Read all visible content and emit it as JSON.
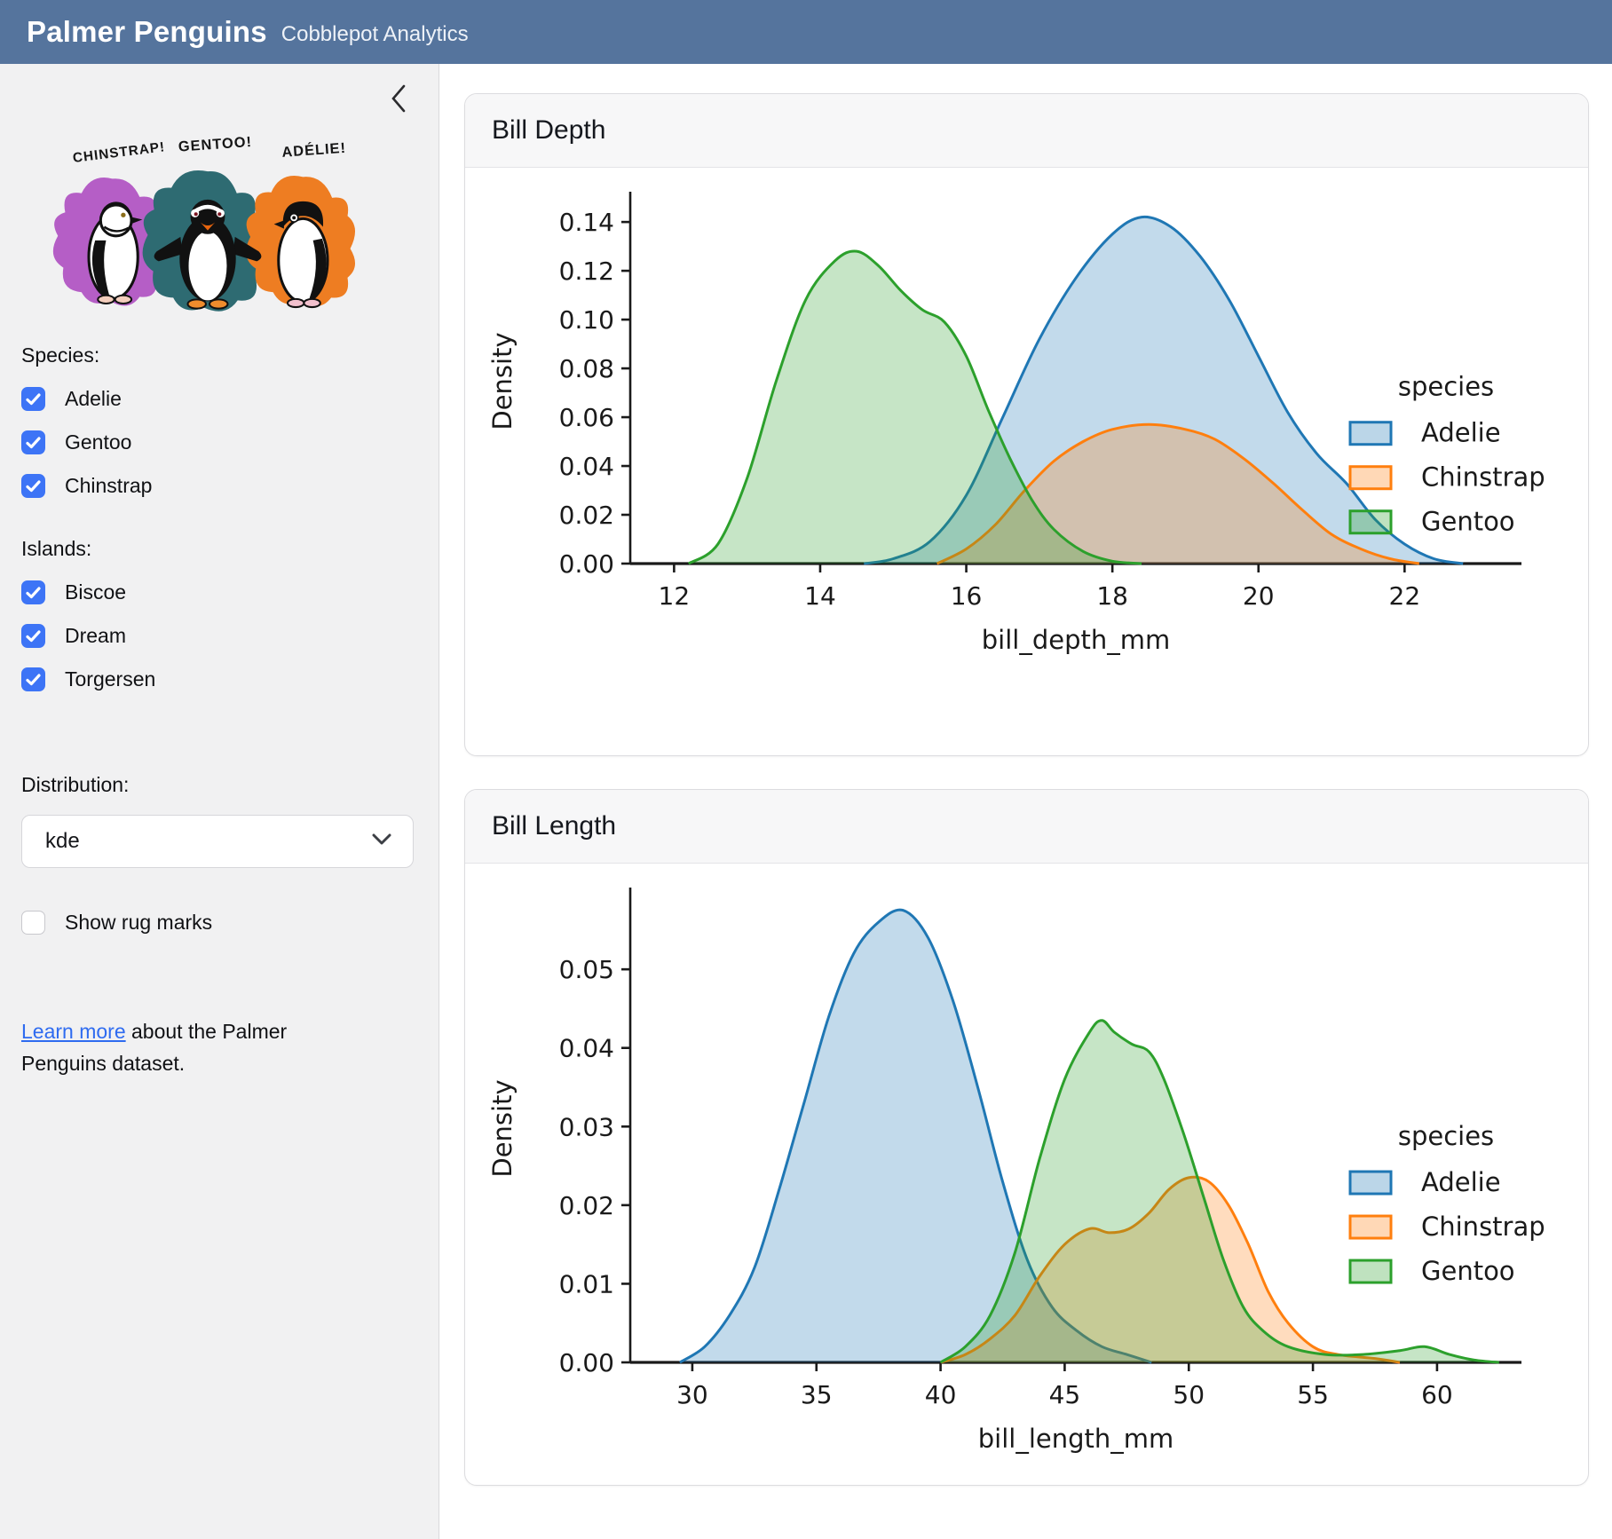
{
  "theme": {
    "header_bg": "#55749d",
    "accent": "#3d74f6",
    "link": "#2e6bf0",
    "sidebar_bg": "#f1f1f2",
    "axis_color": "#1a1a1a"
  },
  "header": {
    "title": "Palmer Penguins",
    "subtitle": "Cobblepot Analytics"
  },
  "sidebar": {
    "banner": {
      "labels": [
        "CHINSTRAP!",
        "GENTOO!",
        "ADÉLIE!"
      ],
      "colors": {
        "chinstrap": "#b55ec6",
        "gentoo": "#2e6b72",
        "adelie": "#ee7d22"
      }
    },
    "species_label": "Species:",
    "species": [
      {
        "label": "Adelie",
        "checked": true
      },
      {
        "label": "Gentoo",
        "checked": true
      },
      {
        "label": "Chinstrap",
        "checked": true
      }
    ],
    "islands_label": "Islands:",
    "islands": [
      {
        "label": "Biscoe",
        "checked": true
      },
      {
        "label": "Dream",
        "checked": true
      },
      {
        "label": "Torgersen",
        "checked": true
      }
    ],
    "distribution_label": "Distribution:",
    "distribution_value": "kde",
    "rug": {
      "label": "Show rug marks",
      "checked": false
    },
    "about": {
      "link_text": "Learn more",
      "rest_text": " about the Palmer Penguins dataset."
    }
  },
  "chart_data": [
    {
      "card_title": "Bill Depth",
      "type": "area",
      "kind": "kde",
      "xlabel": "bill_depth_mm",
      "ylabel": "Density",
      "xlim": [
        11.4,
        23.6
      ],
      "ylim": [
        0,
        0.1495
      ],
      "xticks": [
        12,
        14,
        16,
        18,
        20,
        22
      ],
      "yticks": [
        0.0,
        0.02,
        0.04,
        0.06,
        0.08,
        0.1,
        0.12,
        0.14
      ],
      "legend": {
        "title": "species",
        "position": "center right"
      },
      "series": [
        {
          "name": "Adelie",
          "color": "#1f77b4",
          "points": [
            [
              14.6,
              0
            ],
            [
              15.0,
              0.002
            ],
            [
              15.5,
              0.009
            ],
            [
              16.0,
              0.028
            ],
            [
              16.5,
              0.06
            ],
            [
              17.0,
              0.092
            ],
            [
              17.5,
              0.117
            ],
            [
              18.0,
              0.135
            ],
            [
              18.4,
              0.142
            ],
            [
              18.8,
              0.138
            ],
            [
              19.2,
              0.126
            ],
            [
              19.6,
              0.108
            ],
            [
              20.0,
              0.085
            ],
            [
              20.4,
              0.062
            ],
            [
              20.8,
              0.045
            ],
            [
              21.2,
              0.033
            ],
            [
              21.6,
              0.018
            ],
            [
              22.0,
              0.008
            ],
            [
              22.4,
              0.002
            ],
            [
              22.8,
              0
            ]
          ]
        },
        {
          "name": "Chinstrap",
          "color": "#ff7f0e",
          "points": [
            [
              15.6,
              0
            ],
            [
              16.0,
              0.006
            ],
            [
              16.4,
              0.016
            ],
            [
              16.8,
              0.03
            ],
            [
              17.2,
              0.042
            ],
            [
              17.6,
              0.05
            ],
            [
              18.0,
              0.055
            ],
            [
              18.5,
              0.057
            ],
            [
              19.0,
              0.055
            ],
            [
              19.4,
              0.051
            ],
            [
              19.8,
              0.043
            ],
            [
              20.2,
              0.033
            ],
            [
              20.6,
              0.022
            ],
            [
              21.0,
              0.012
            ],
            [
              21.4,
              0.006
            ],
            [
              21.8,
              0.002
            ],
            [
              22.2,
              0
            ]
          ]
        },
        {
          "name": "Gentoo",
          "color": "#2ca02c",
          "points": [
            [
              12.2,
              0
            ],
            [
              12.6,
              0.008
            ],
            [
              13.0,
              0.035
            ],
            [
              13.4,
              0.075
            ],
            [
              13.8,
              0.108
            ],
            [
              14.2,
              0.124
            ],
            [
              14.5,
              0.128
            ],
            [
              14.8,
              0.122
            ],
            [
              15.1,
              0.112
            ],
            [
              15.4,
              0.104
            ],
            [
              15.7,
              0.099
            ],
            [
              16.0,
              0.085
            ],
            [
              16.3,
              0.063
            ],
            [
              16.6,
              0.043
            ],
            [
              16.9,
              0.026
            ],
            [
              17.2,
              0.014
            ],
            [
              17.6,
              0.005
            ],
            [
              18.0,
              0.001
            ],
            [
              18.4,
              0
            ]
          ]
        }
      ]
    },
    {
      "card_title": "Bill Length",
      "type": "area",
      "kind": "kde",
      "xlabel": "bill_length_mm",
      "ylabel": "Density",
      "xlim": [
        27.5,
        63.4
      ],
      "ylim": [
        0,
        0.0595
      ],
      "xticks": [
        30,
        35,
        40,
        45,
        50,
        55,
        60
      ],
      "yticks": [
        0.0,
        0.01,
        0.02,
        0.03,
        0.04,
        0.05
      ],
      "legend": {
        "title": "species",
        "position": "center right"
      },
      "series": [
        {
          "name": "Adelie",
          "color": "#1f77b4",
          "points": [
            [
              29.5,
              0
            ],
            [
              30.5,
              0.002
            ],
            [
              31.5,
              0.006
            ],
            [
              32.5,
              0.012
            ],
            [
              33.5,
              0.022
            ],
            [
              34.5,
              0.033
            ],
            [
              35.5,
              0.044
            ],
            [
              36.5,
              0.052
            ],
            [
              37.5,
              0.056
            ],
            [
              38.5,
              0.0575
            ],
            [
              39.5,
              0.054
            ],
            [
              40.5,
              0.046
            ],
            [
              41.5,
              0.035
            ],
            [
              42.5,
              0.023
            ],
            [
              43.5,
              0.013
            ],
            [
              44.5,
              0.007
            ],
            [
              45.5,
              0.004
            ],
            [
              46.5,
              0.002
            ],
            [
              47.5,
              0.001
            ],
            [
              48.5,
              0
            ]
          ]
        },
        {
          "name": "Chinstrap",
          "color": "#ff7f0e",
          "points": [
            [
              40.0,
              0
            ],
            [
              41.0,
              0.001
            ],
            [
              42.0,
              0.003
            ],
            [
              43.0,
              0.006
            ],
            [
              44.0,
              0.011
            ],
            [
              45.0,
              0.015
            ],
            [
              46.0,
              0.017
            ],
            [
              46.8,
              0.0165
            ],
            [
              47.6,
              0.017
            ],
            [
              48.4,
              0.019
            ],
            [
              49.2,
              0.022
            ],
            [
              50.0,
              0.0235
            ],
            [
              50.8,
              0.023
            ],
            [
              51.6,
              0.02
            ],
            [
              52.4,
              0.015
            ],
            [
              53.2,
              0.009
            ],
            [
              54.0,
              0.005
            ],
            [
              55.0,
              0.002
            ],
            [
              56.0,
              0.001
            ],
            [
              57.5,
              0.0005
            ],
            [
              58.5,
              0
            ]
          ]
        },
        {
          "name": "Gentoo",
          "color": "#2ca02c",
          "points": [
            [
              40.0,
              0
            ],
            [
              41.0,
              0.002
            ],
            [
              42.0,
              0.006
            ],
            [
              43.0,
              0.014
            ],
            [
              44.0,
              0.026
            ],
            [
              45.0,
              0.036
            ],
            [
              46.0,
              0.042
            ],
            [
              46.5,
              0.0435
            ],
            [
              47.0,
              0.042
            ],
            [
              47.7,
              0.0405
            ],
            [
              48.4,
              0.0395
            ],
            [
              49.0,
              0.036
            ],
            [
              49.8,
              0.029
            ],
            [
              50.6,
              0.021
            ],
            [
              51.4,
              0.013
            ],
            [
              52.2,
              0.007
            ],
            [
              53.0,
              0.004
            ],
            [
              54.0,
              0.002
            ],
            [
              55.5,
              0.001
            ],
            [
              57.0,
              0.001
            ],
            [
              58.5,
              0.0015
            ],
            [
              59.5,
              0.002
            ],
            [
              60.5,
              0.001
            ],
            [
              61.5,
              0.0003
            ],
            [
              62.5,
              0
            ]
          ]
        }
      ]
    }
  ]
}
